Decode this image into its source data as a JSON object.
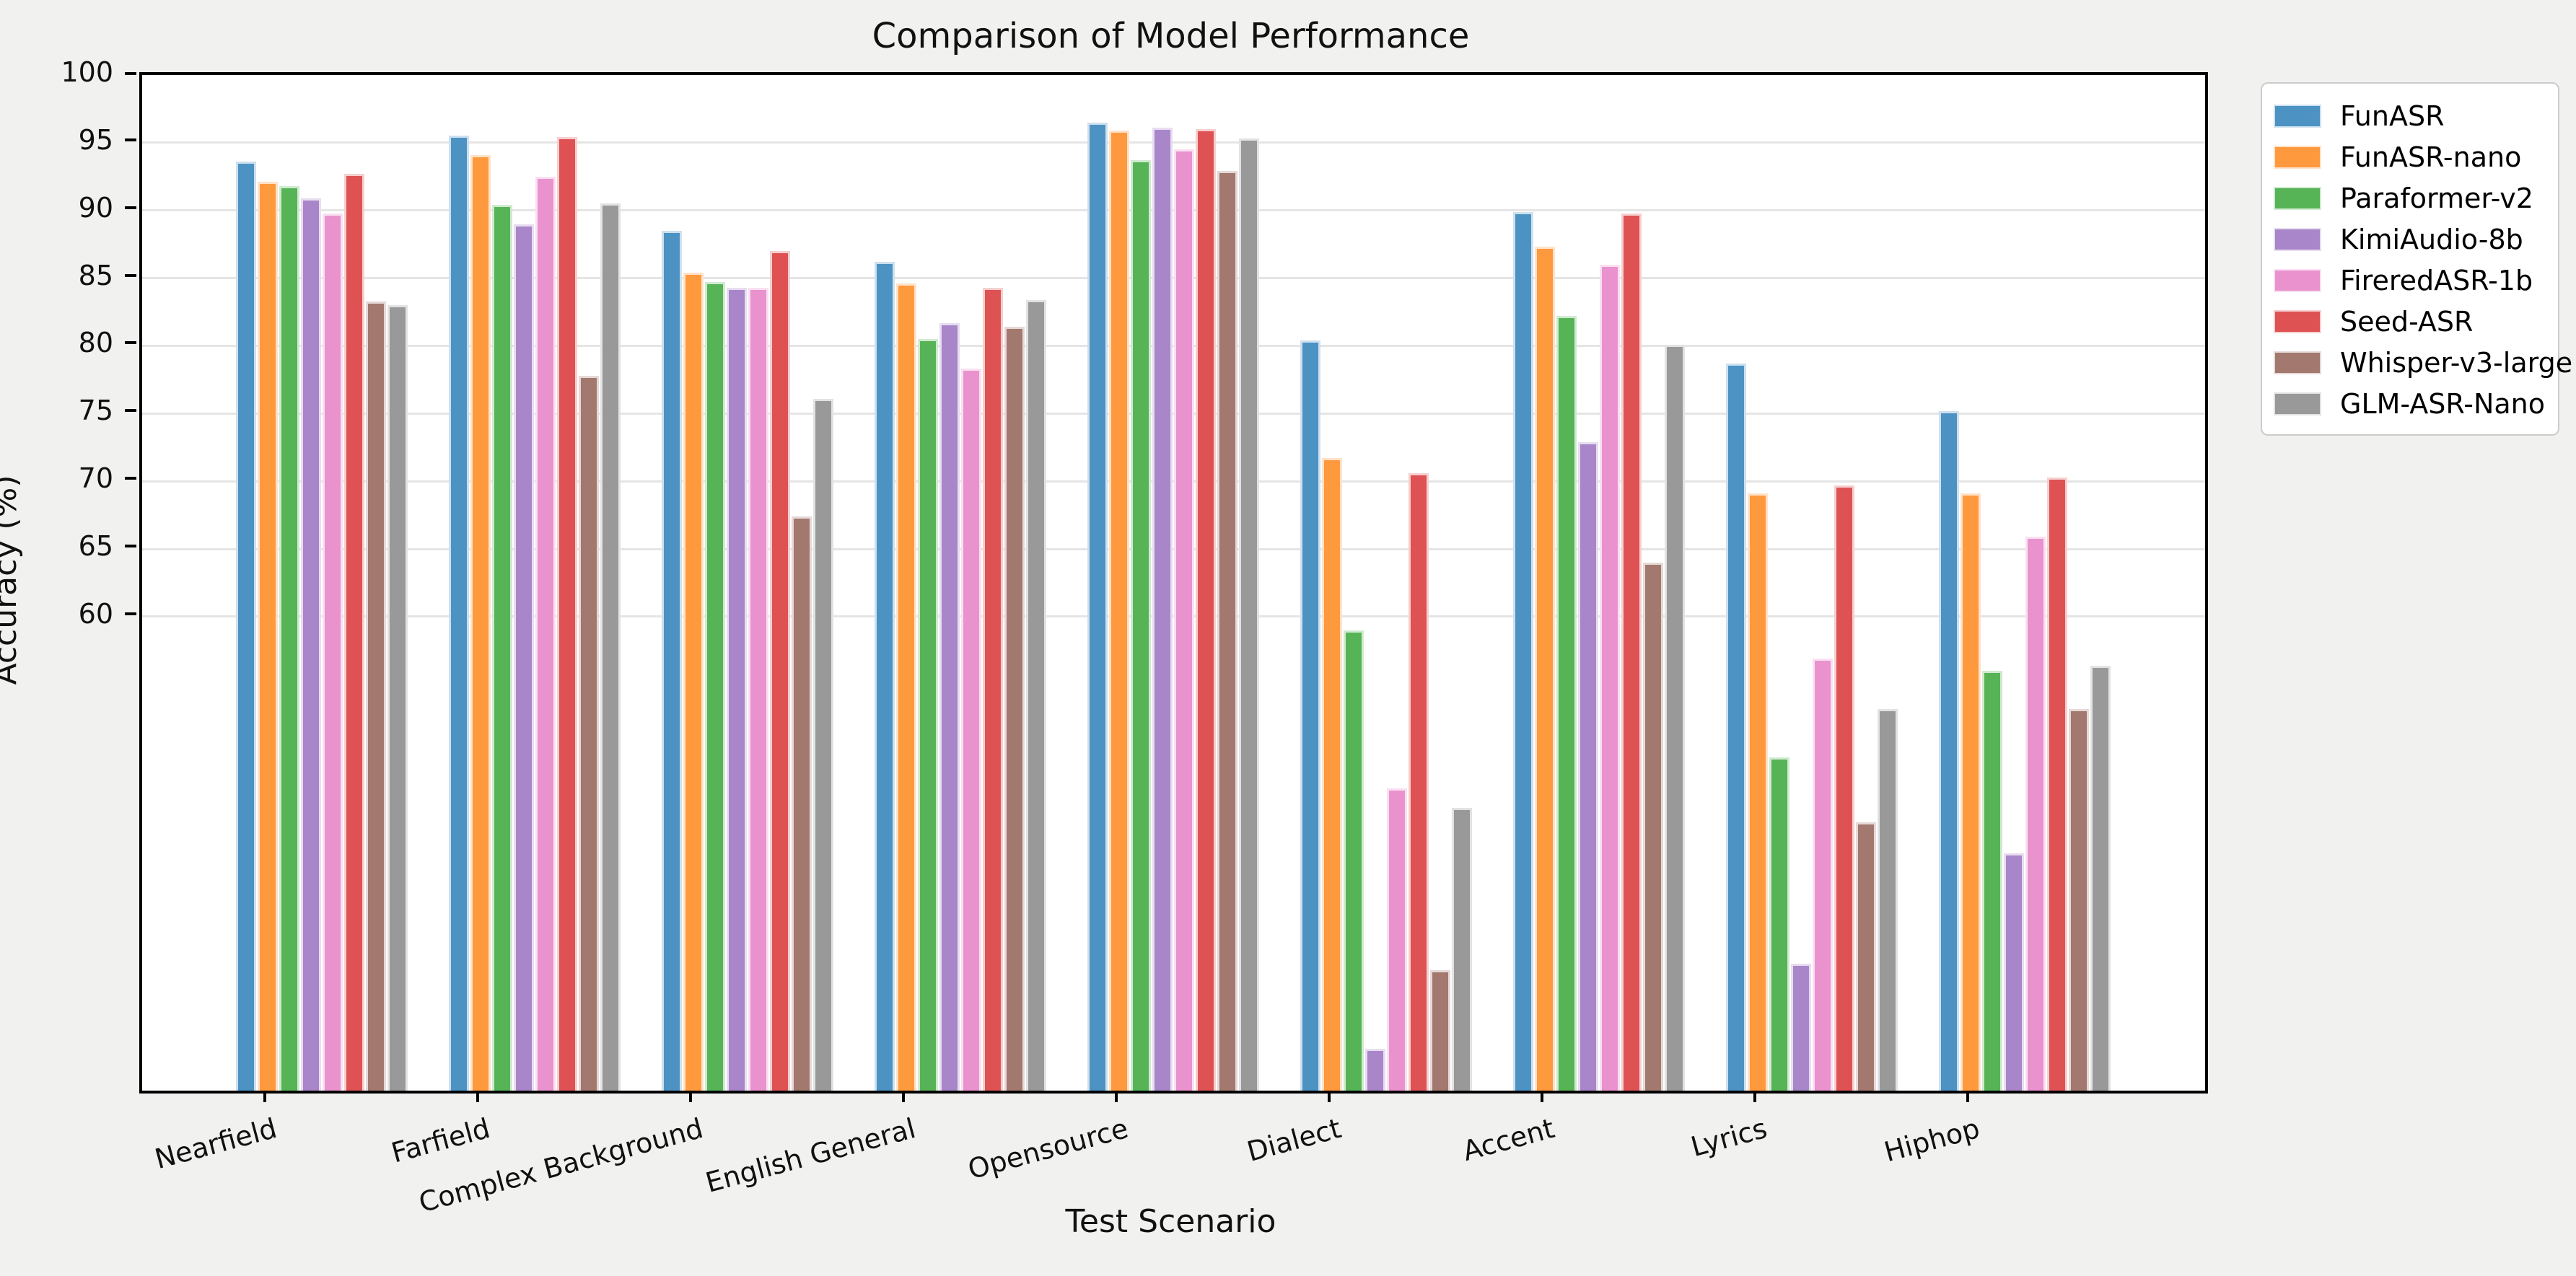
{
  "figure": {
    "title": "Comparison of Model Performance",
    "background_color": "#f1f1f0",
    "plot_background_color": "#ffffff"
  },
  "chart_data": {
    "type": "bar",
    "title": "Comparison of Model Performance",
    "xlabel": "Test Scenario",
    "ylabel": "Accuracy (%)",
    "ylim": [
      25,
      100
    ],
    "yticks": [
      60,
      65,
      70,
      75,
      80,
      85,
      90,
      95,
      100
    ],
    "grid": "horizontal gridlines at labeled yticks only",
    "legend_position": "outside upper right",
    "bar_group_note": "tick label anchored under 2nd bar of each 8-bar group",
    "categories": [
      "Nearfield",
      "Farfield",
      "Complex Background",
      "English General",
      "Opensource",
      "Dialect",
      "Accent",
      "Lyrics",
      "Hiphop"
    ],
    "series": [
      {
        "name": "FunASR",
        "color": "#4C92C3",
        "values": [
          93.6,
          95.5,
          88.5,
          86.2,
          96.5,
          80.4,
          89.9,
          78.7,
          75.2
        ]
      },
      {
        "name": "FunASR-nano",
        "color": "#FF993E",
        "values": [
          92.1,
          94.1,
          85.4,
          84.6,
          95.9,
          71.7,
          87.3,
          69.1,
          69.1
        ]
      },
      {
        "name": "Paraformer-v2",
        "color": "#56B356",
        "values": [
          91.8,
          90.4,
          84.7,
          80.5,
          93.7,
          59.0,
          82.2,
          49.6,
          56.0
        ]
      },
      {
        "name": "KimiAudio-8b",
        "color": "#A985CA",
        "values": [
          90.9,
          89.0,
          84.3,
          81.7,
          96.1,
          28.1,
          72.9,
          34.4,
          42.5
        ]
      },
      {
        "name": "FireredASR-1b",
        "color": "#E992CE",
        "values": [
          89.8,
          92.5,
          84.3,
          78.3,
          94.5,
          47.3,
          86.0,
          56.9,
          65.9
        ]
      },
      {
        "name": "Seed-ASR",
        "color": "#DE5253",
        "values": [
          92.7,
          95.4,
          87.0,
          84.3,
          96.0,
          70.6,
          89.8,
          69.7,
          70.3
        ]
      },
      {
        "name": "Whisper-v3-large",
        "color": "#A3786F",
        "values": [
          83.3,
          77.8,
          67.4,
          81.4,
          92.9,
          33.9,
          64.0,
          44.8,
          53.2
        ]
      },
      {
        "name": "GLM-ASR-Nano",
        "color": "#999999",
        "values": [
          83.0,
          90.5,
          76.1,
          83.4,
          95.3,
          45.9,
          80.1,
          53.2,
          56.4
        ]
      }
    ]
  }
}
